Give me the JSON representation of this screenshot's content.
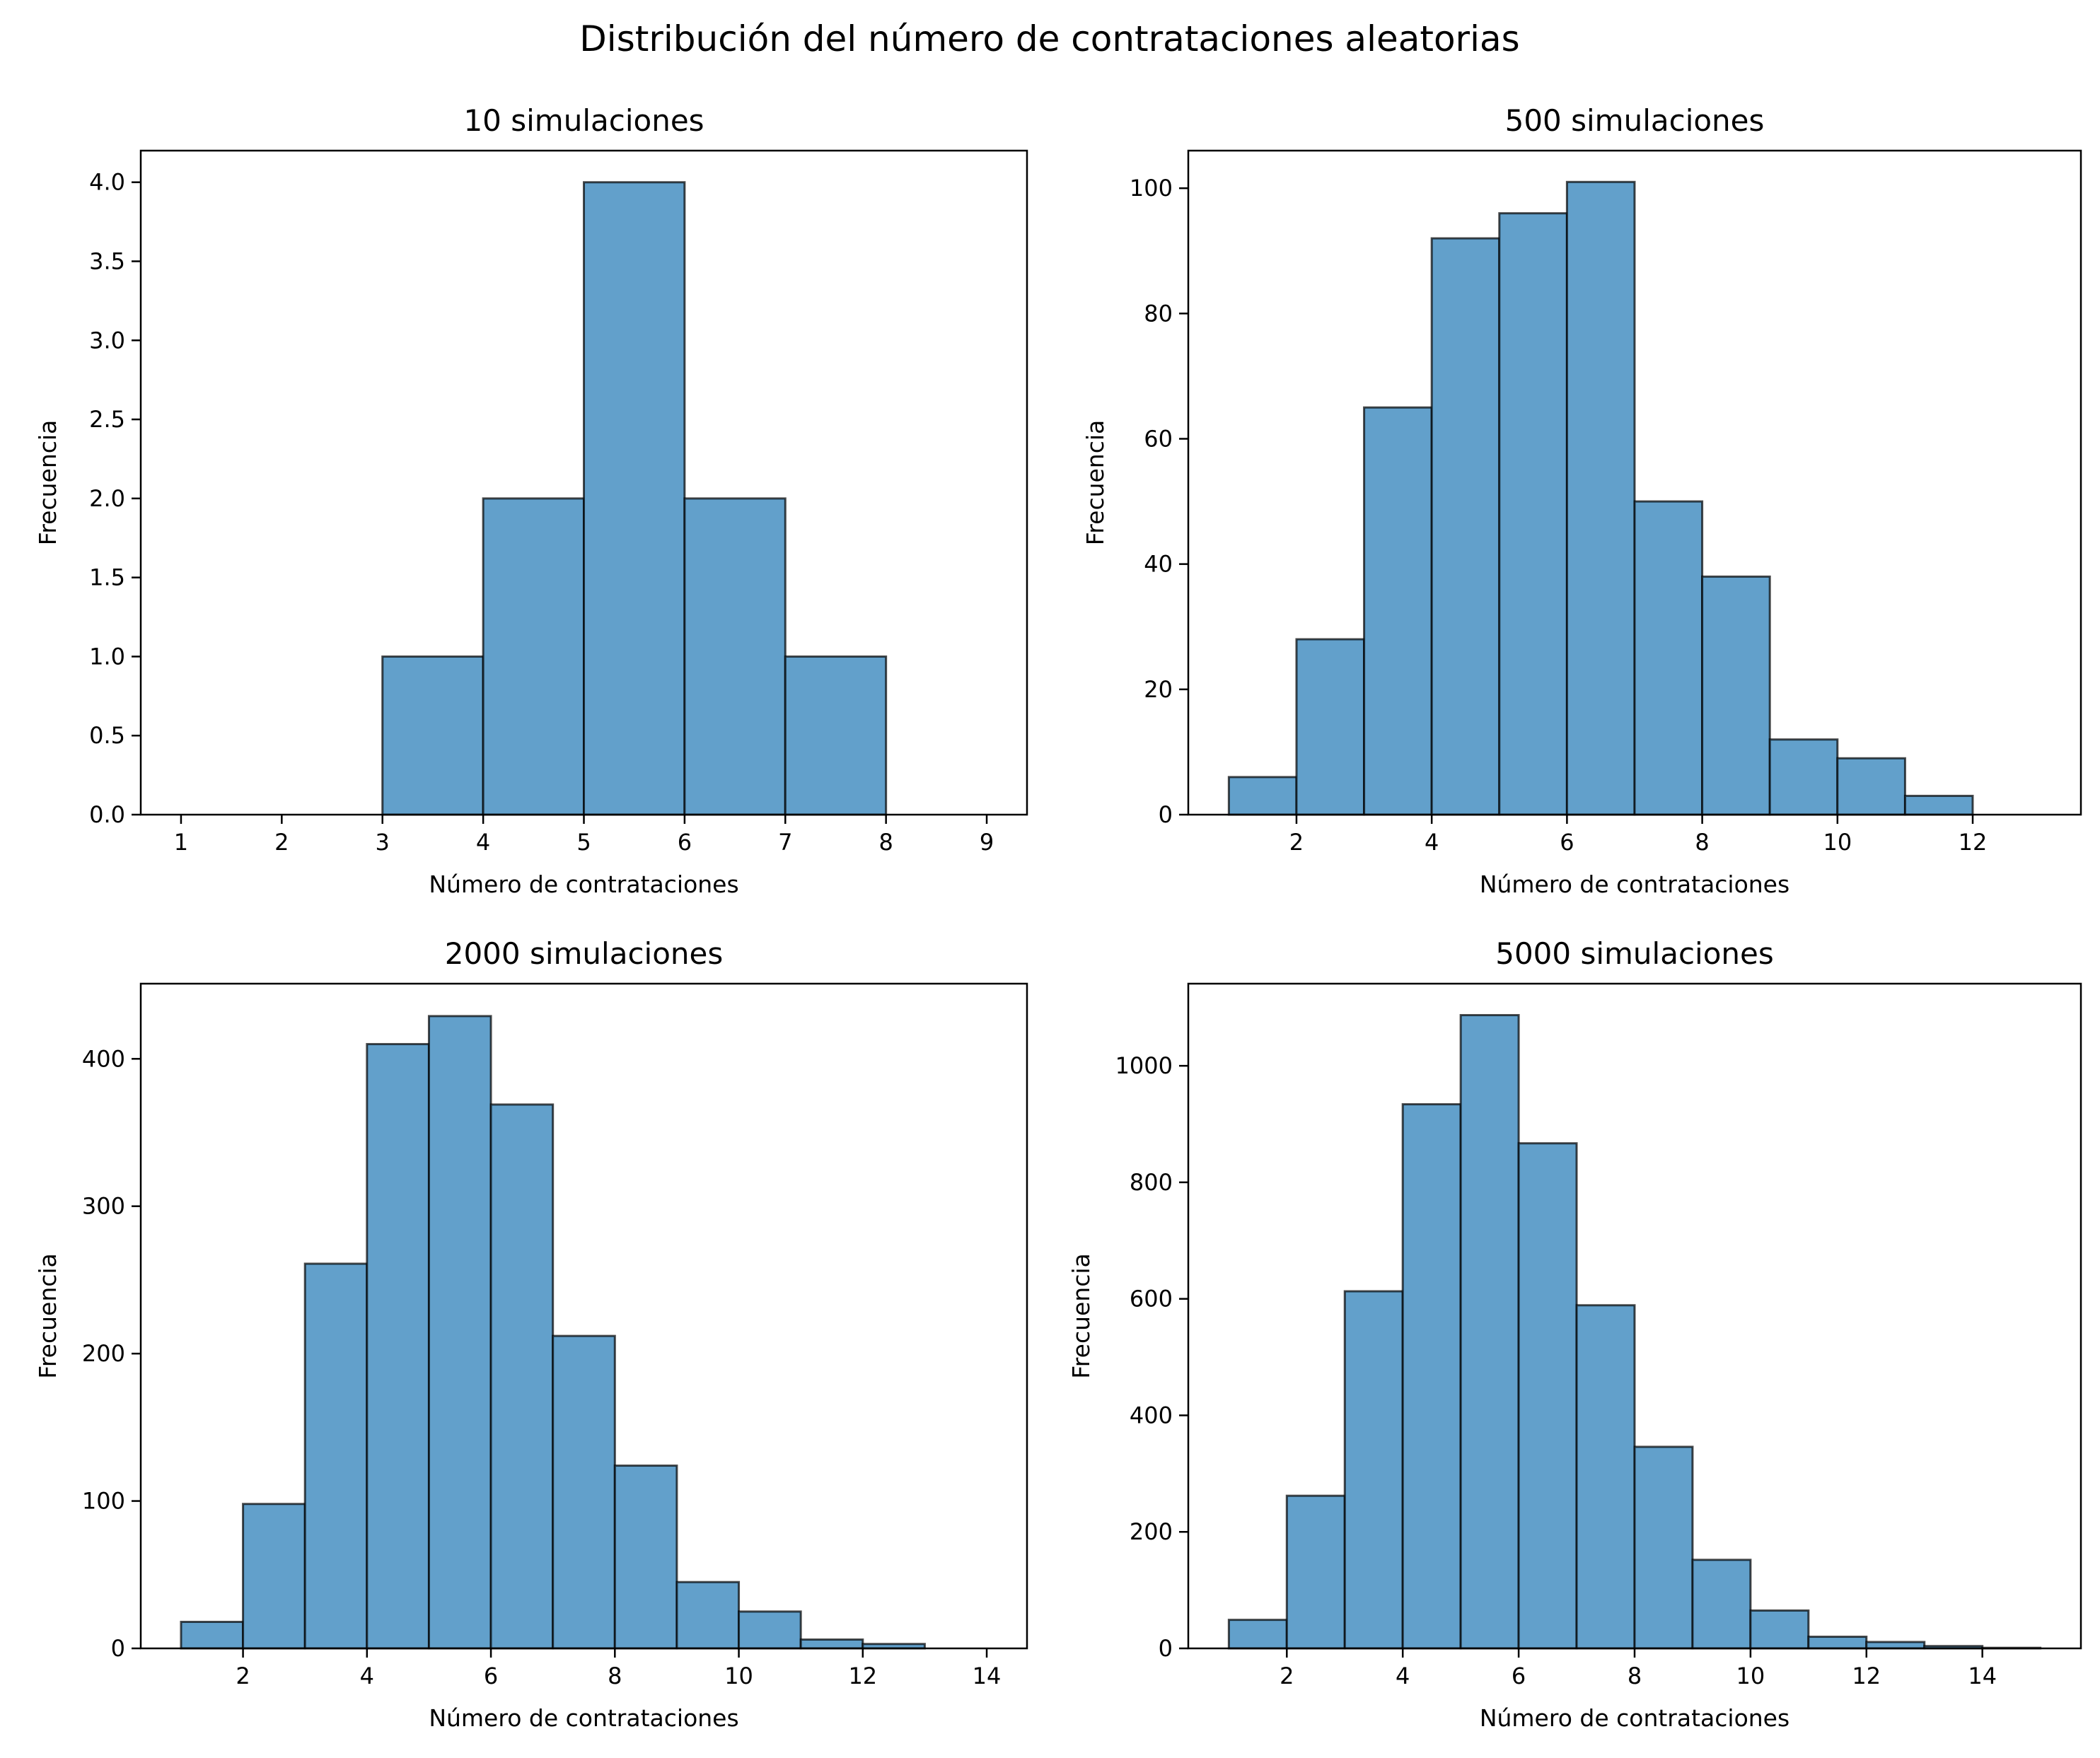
{
  "suptitle": "Distribución del número de contrataciones aleatorias",
  "colors": {
    "bar_fill": "#1f77b4",
    "bar_alpha": 0.7,
    "bar_edge": "#000000"
  },
  "chart_data": [
    {
      "type": "bar",
      "histogram": true,
      "title": "10 simulaciones",
      "xlabel": "Número de contrataciones",
      "ylabel": "Frecuencia",
      "bin_start": 1,
      "bin_width": 1,
      "values": [
        0,
        0,
        1,
        2,
        4,
        2,
        1,
        0
      ],
      "xlim": [
        0.6,
        9.4
      ],
      "ylim": [
        0,
        4.2
      ],
      "xticks": [
        "1",
        "2",
        "3",
        "4",
        "5",
        "6",
        "7",
        "8",
        "9"
      ],
      "xtick_values": [
        1,
        2,
        3,
        4,
        5,
        6,
        7,
        8,
        9
      ],
      "yticks": [
        "0.0",
        "0.5",
        "1.0",
        "1.5",
        "2.0",
        "2.5",
        "3.0",
        "3.5",
        "4.0"
      ],
      "ytick_values": [
        0,
        0.5,
        1,
        1.5,
        2,
        2.5,
        3,
        3.5,
        4
      ],
      "grid": false
    },
    {
      "type": "bar",
      "histogram": true,
      "title": "500 simulaciones",
      "xlabel": "Número de contrataciones",
      "ylabel": "Frecuencia",
      "bin_start": 1,
      "bin_width": 1,
      "values": [
        6,
        28,
        65,
        92,
        96,
        101,
        50,
        38,
        12,
        9,
        3,
        0
      ],
      "xlim": [
        0.4,
        13.6
      ],
      "ylim": [
        0,
        106
      ],
      "xticks": [
        "2",
        "4",
        "6",
        "8",
        "10",
        "12"
      ],
      "xtick_values": [
        2,
        4,
        6,
        8,
        10,
        12
      ],
      "yticks": [
        "0",
        "20",
        "40",
        "60",
        "80",
        "100"
      ],
      "ytick_values": [
        0,
        20,
        40,
        60,
        80,
        100
      ],
      "grid": false
    },
    {
      "type": "bar",
      "histogram": true,
      "title": "2000 simulaciones",
      "xlabel": "Número de contrataciones",
      "ylabel": "Frecuencia",
      "bin_start": 1,
      "bin_width": 1,
      "values": [
        18,
        98,
        261,
        410,
        429,
        369,
        212,
        124,
        45,
        25,
        6,
        3,
        0
      ],
      "xlim": [
        0.35,
        14.65
      ],
      "ylim": [
        0,
        451
      ],
      "xticks": [
        "2",
        "4",
        "6",
        "8",
        "10",
        "12",
        "14"
      ],
      "xtick_values": [
        2,
        4,
        6,
        8,
        10,
        12,
        14
      ],
      "yticks": [
        "0",
        "100",
        "200",
        "300",
        "400"
      ],
      "ytick_values": [
        0,
        100,
        200,
        300,
        400
      ],
      "grid": false
    },
    {
      "type": "bar",
      "histogram": true,
      "title": "5000 simulaciones",
      "xlabel": "Número de contrataciones",
      "ylabel": "Frecuencia",
      "bin_start": 1,
      "bin_width": 1,
      "values": [
        49,
        262,
        613,
        934,
        1087,
        867,
        589,
        346,
        152,
        65,
        20,
        11,
        4,
        1
      ],
      "xlim": [
        0.3,
        15.7
      ],
      "ylim": [
        0,
        1141
      ],
      "xticks": [
        "2",
        "4",
        "6",
        "8",
        "10",
        "12",
        "14"
      ],
      "xtick_values": [
        2,
        4,
        6,
        8,
        10,
        12,
        14
      ],
      "yticks": [
        "0",
        "200",
        "400",
        "600",
        "800",
        "1000"
      ],
      "ytick_values": [
        0,
        200,
        400,
        600,
        800,
        1000
      ],
      "grid": false
    }
  ]
}
